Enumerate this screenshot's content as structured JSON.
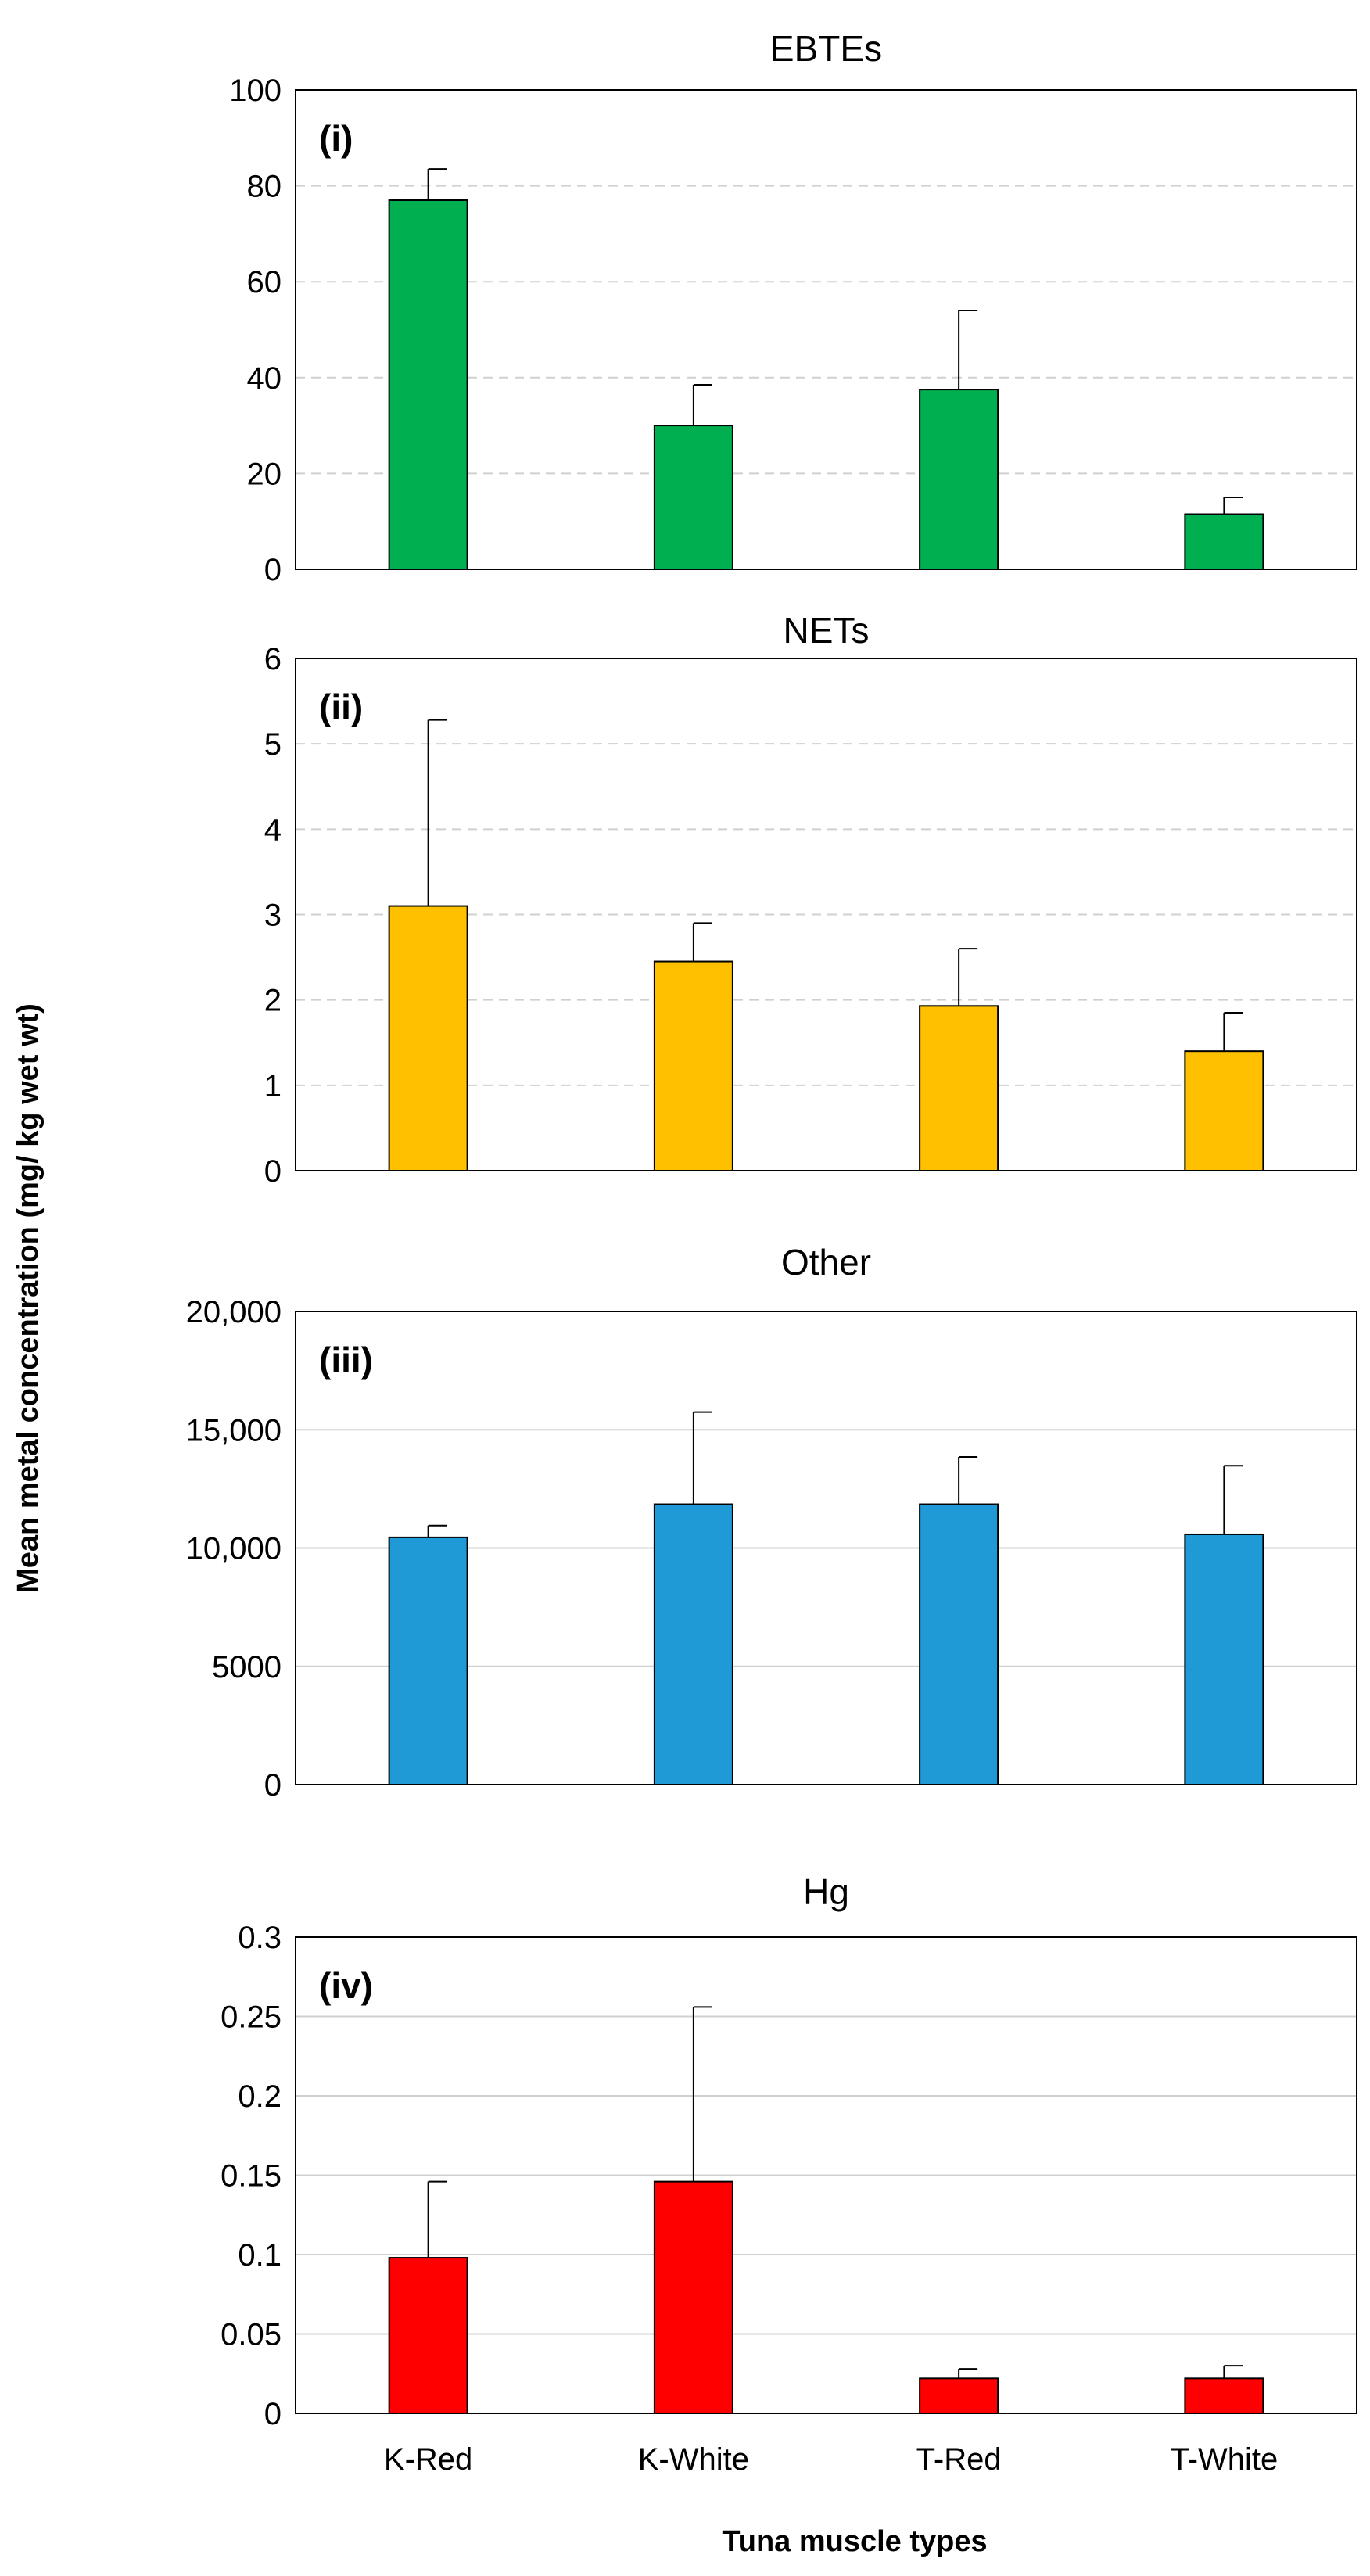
{
  "figure": {
    "ylabel": "Mean metal concentration (mg/ kg wet wt)",
    "xlabel": "Tuna muscle types"
  },
  "chart_data": [
    {
      "type": "bar",
      "title": "EBTEs",
      "panel_label": "(i)",
      "categories": [
        "K-Red",
        "K-White",
        "T-Red",
        "T-White"
      ],
      "values": [
        77,
        30,
        37.5,
        11.5
      ],
      "errors": [
        6.5,
        8.5,
        16.5,
        3.5
      ],
      "ylim": [
        0,
        100
      ],
      "yticks": [
        0,
        20,
        40,
        60,
        80,
        100
      ],
      "ytick_labels": [
        "0",
        "20",
        "40",
        "60",
        "80",
        "100"
      ],
      "color": "#00b050",
      "grid": "dashed",
      "show_category_labels": false
    },
    {
      "type": "bar",
      "title": "NETs",
      "panel_label": "(ii)",
      "categories": [
        "K-Red",
        "K-White",
        "T-Red",
        "T-White"
      ],
      "values": [
        3.1,
        2.45,
        1.93,
        1.4
      ],
      "errors": [
        2.18,
        0.45,
        0.67,
        0.45
      ],
      "ylim": [
        0,
        6
      ],
      "yticks": [
        0,
        1,
        2,
        3,
        4,
        5,
        6
      ],
      "ytick_labels": [
        "0",
        "1",
        "2",
        "3",
        "4",
        "5",
        "6"
      ],
      "color": "#ffc000",
      "grid": "dashed",
      "show_category_labels": false
    },
    {
      "type": "bar",
      "title": "Other",
      "panel_label": "(iii)",
      "categories": [
        "K-Red",
        "K-White",
        "T-Red",
        "T-White"
      ],
      "values": [
        10450,
        11850,
        11850,
        10580
      ],
      "errors": [
        500,
        3900,
        2000,
        2900
      ],
      "ylim": [
        0,
        20000
      ],
      "yticks": [
        0,
        5000,
        10000,
        15000,
        20000
      ],
      "ytick_labels": [
        "0",
        "5000",
        "10,000",
        "15,000",
        "20,000"
      ],
      "color": "#1f9ad6",
      "grid": "solid",
      "show_category_labels": false
    },
    {
      "type": "bar",
      "title": "Hg",
      "panel_label": "(iv)",
      "categories": [
        "K-Red",
        "K-White",
        "T-Red",
        "T-White"
      ],
      "values": [
        0.098,
        0.146,
        0.022,
        0.022
      ],
      "errors": [
        0.048,
        0.11,
        0.006,
        0.008
      ],
      "ylim": [
        0,
        0.3
      ],
      "yticks": [
        0,
        0.05,
        0.1,
        0.15,
        0.2,
        0.25,
        0.3
      ],
      "ytick_labels": [
        "0",
        "0.05",
        "0.1",
        "0.15",
        "0.2",
        "0.25",
        "0.3"
      ],
      "color": "#ff0000",
      "grid": "solid",
      "show_category_labels": true
    }
  ]
}
